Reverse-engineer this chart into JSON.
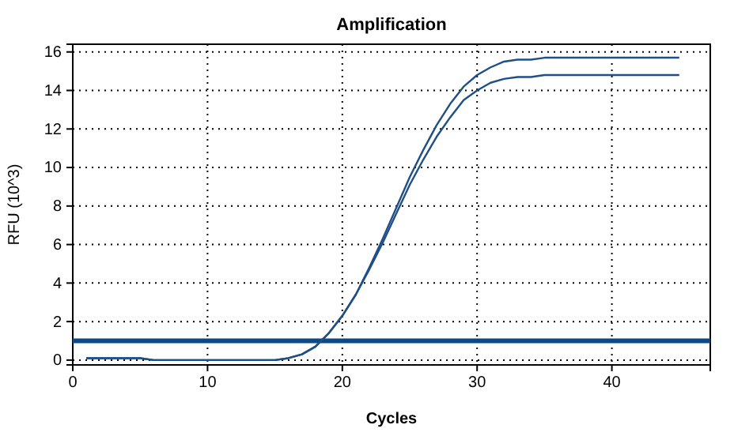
{
  "chart_data": {
    "type": "line",
    "title": "Amplification",
    "xlabel": "Cycles",
    "ylabel": "RFU (10^3)",
    "x": [
      1,
      2,
      3,
      4,
      5,
      6,
      7,
      8,
      9,
      10,
      11,
      12,
      13,
      14,
      15,
      16,
      17,
      18,
      19,
      20,
      21,
      22,
      23,
      24,
      25,
      26,
      27,
      28,
      29,
      30,
      31,
      32,
      33,
      34,
      35,
      36,
      37,
      38,
      39,
      40,
      41,
      42,
      43,
      44,
      45
    ],
    "series": [
      {
        "color": "#1f4f86",
        "values": [
          0.1,
          0.1,
          0.1,
          0.1,
          0.1,
          0,
          0,
          0,
          0,
          0,
          0,
          0,
          0,
          0,
          0,
          0.1,
          0.3,
          0.7,
          1.4,
          2.3,
          3.4,
          4.8,
          6.3,
          7.9,
          9.5,
          10.9,
          12.2,
          13.3,
          14.2,
          14.8,
          15.2,
          15.5,
          15.6,
          15.6,
          15.7,
          15.7,
          15.7,
          15.7,
          15.7,
          15.7,
          15.7,
          15.7,
          15.7,
          15.7,
          15.7
        ]
      },
      {
        "color": "#1f4f86",
        "values": [
          0.1,
          0.1,
          0.1,
          0.1,
          0.1,
          0,
          0,
          0,
          0,
          0,
          0,
          0,
          0,
          0,
          0,
          0.1,
          0.3,
          0.7,
          1.4,
          2.3,
          3.4,
          4.7,
          6.1,
          7.6,
          9.1,
          10.4,
          11.6,
          12.6,
          13.5,
          14.0,
          14.4,
          14.6,
          14.7,
          14.7,
          14.8,
          14.8,
          14.8,
          14.8,
          14.8,
          14.8,
          14.8,
          14.8,
          14.8,
          14.8,
          14.8
        ]
      }
    ],
    "ref_lines": [
      {
        "axis": "y",
        "value": 1,
        "color": "#0b4a85"
      }
    ],
    "xlim": [
      0,
      47.3
    ],
    "ylim": [
      -0.25,
      16.4
    ],
    "xticks": [
      0,
      10,
      20,
      30,
      40
    ],
    "yticks": [
      0,
      2,
      4,
      6,
      8,
      10,
      12,
      14,
      16
    ],
    "grid": true,
    "marker": "none",
    "line_style": "solid"
  }
}
